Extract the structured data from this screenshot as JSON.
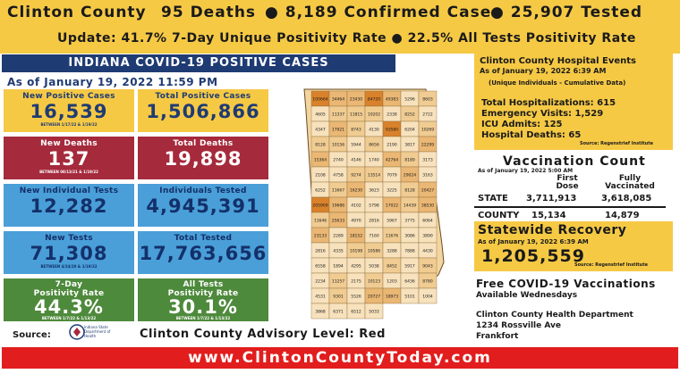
{
  "header": {
    "county": "Clinton County",
    "deaths": "95 Deaths",
    "confirmed": "● 8,189 Confirmed Cases",
    "tested": "● 25,907 Tested",
    "update": "Update: 41.7% 7-Day Unique Positivity Rate ● 22.5% All Tests Positivity Rate"
  },
  "banner": "INDIANA COVID-19 POSITIVE CASES",
  "as_of": "As of January 19, 2022 11:59 PM",
  "stats": {
    "new_positive": {
      "label": "New Positive Cases",
      "value": "16,539",
      "sub": "BETWEEN 1/17/22 & 1/19/22"
    },
    "total_positive": {
      "label": "Total Positive Cases",
      "value": "1,506,866"
    },
    "new_deaths": {
      "label": "New Deaths",
      "value": "137",
      "sub": "BETWEEN 08/13/21 & 1/19/22"
    },
    "total_deaths": {
      "label": "Total Deaths",
      "value": "19,898"
    },
    "new_individual": {
      "label": "New Individual Tests",
      "value": "12,282"
    },
    "individuals_tested": {
      "label": "Individuals Tested",
      "value": "4,945,391"
    },
    "new_tests": {
      "label": "New Tests",
      "value": "71,308",
      "sub": "BETWEEN 4/24/20 & 1/19/22"
    },
    "total_tested": {
      "label": "Total Tested",
      "value": "17,763,656"
    },
    "seven_day": {
      "label1": "7-Day",
      "label2": "Positivity Rate",
      "value": "44.3%",
      "sub": "BETWEEN 1/7/22 & 1/13/22"
    },
    "all_tests": {
      "label1": "All Tests",
      "label2": "Positivity Rate",
      "value": "30.1%",
      "sub": "BETWEEN 1/7/22 & 1/13/22"
    }
  },
  "source_label": "Source:",
  "logo_text": "Indiana State Department of Health",
  "advisory": "Clinton County Advisory Level: Red",
  "hospital": {
    "title": "Clinton County Hospital Events",
    "as_of": "As of January 19, 2022 6:39 AM",
    "note": "(Unique Individuals - Cumulative Data)",
    "lines": [
      "Total Hospitalizations: 615",
      "Emergency Visits: 1,529",
      "ICU Admits: 125",
      "Hospital Deaths: 65"
    ],
    "source": "Source: Regenstrief Institute"
  },
  "vaccination": {
    "title": "Vaccination Count",
    "as_of": "As of January 19, 2022 5:00 AM",
    "first_dose": "First Dose",
    "fully": "Fully Vaccinated",
    "state_label": "STATE",
    "state_first": "3,711,913",
    "state_full": "3,618,085",
    "county_label": "COUNTY",
    "county_first": "15,134",
    "county_full": "14,879"
  },
  "recovery": {
    "title": "Statewide Recovery",
    "as_of": "As of January 19, 2022 6:39 AM",
    "value": "1,205,559",
    "source": "Source: Regenstrief Institute"
  },
  "vaccinations_info": {
    "title": "Free COVID-19 Vaccinations",
    "sub": "Available Wednesdays",
    "dept": "Clinton County Health Department",
    "addr": "1234 Rossville Ave",
    "city": "Frankfort"
  },
  "footer": "www.ClintonCountyToday.com",
  "map_counts": [
    "100664",
    "34464",
    "23430",
    "84720",
    "49383",
    "5296",
    "8603",
    "4605",
    "11337",
    "11815",
    "10202",
    "2338",
    "8252",
    "2722",
    "4347",
    "17921",
    "8743",
    "4130",
    "93580",
    "6204",
    "10269",
    "8128",
    "10156",
    "5944",
    "8656",
    "2190",
    "3817",
    "22299",
    "15364",
    "2740",
    "4146",
    "1740",
    "42764",
    "8189",
    "3173",
    "2108",
    "4758",
    "9274",
    "13514",
    "7079",
    "29024",
    "3163",
    "6252",
    "11667",
    "16230",
    "3623",
    "3225",
    "8128",
    "20427",
    "205909",
    "19686",
    "4102",
    "5798",
    "17022",
    "14439",
    "38530",
    "11646",
    "25633",
    "4970",
    "2816",
    "5967",
    "3775",
    "6064",
    "23133",
    "2289",
    "18152",
    "7160",
    "11676",
    "3086",
    "3890",
    "2816",
    "4335",
    "10198",
    "10586",
    "3288",
    "7888",
    "4430",
    "6558",
    "1894",
    "4295",
    "5038",
    "8452",
    "5917",
    "9043",
    "2234",
    "11257",
    "2175",
    "10123",
    "1203",
    "6436",
    "8780",
    "4531",
    "9301",
    "5526",
    "20727",
    "18973",
    "5101",
    "1004",
    "3868",
    "6371",
    "6512",
    "5033"
  ],
  "colors": {
    "gold": "#f6c945",
    "navy": "#1f3b73",
    "red": "#a52a3c",
    "blue": "#4a9fd8",
    "green": "#4e8a3c",
    "footer": "#e21d1d"
  }
}
